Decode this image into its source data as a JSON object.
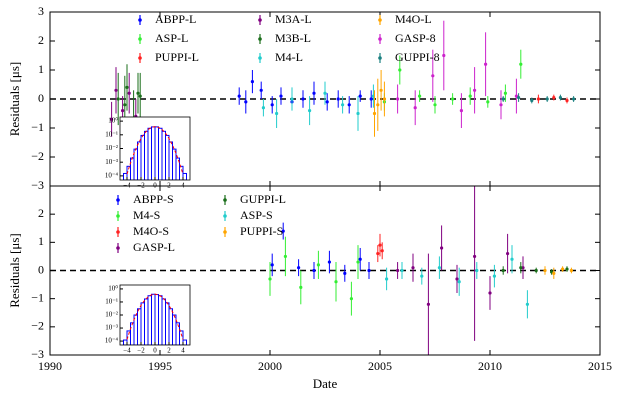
{
  "chart_data": [
    {
      "type": "errorbar",
      "ylabel": "Residuals [μs]",
      "xlim": [
        1990,
        2015
      ],
      "xticks": [
        1990,
        1995,
        2000,
        2005,
        2010,
        2015
      ],
      "ylim": [
        -3,
        3
      ],
      "yticks": [
        {
          "value": -3,
          "label": "−3"
        },
        {
          "value": -2,
          "label": "−2"
        },
        {
          "value": -1,
          "label": "−1"
        },
        0,
        1,
        2,
        3
      ],
      "zero_line": true,
      "series": [
        {
          "name": "ABPP-L",
          "color": "#0000ff",
          "x": [
            1998.6,
            1998.9,
            1999.2,
            1999.6,
            2000.1,
            2000.5,
            2001.0,
            2001.5,
            2002.0,
            2002.6,
            2003.1,
            2003.6,
            2004.1,
            2004.6
          ],
          "values": [
            0.1,
            -0.1,
            0.6,
            0.3,
            -0.2,
            0.1,
            -0.1,
            0.0,
            0.2,
            -0.1,
            0.0,
            -0.2,
            0.1,
            0.0
          ],
          "errors": [
            0.3,
            0.4,
            0.4,
            0.3,
            0.3,
            0.3,
            0.2,
            0.3,
            0.4,
            0.3,
            0.3,
            0.3,
            0.2,
            0.3
          ]
        },
        {
          "name": "ASP-L",
          "color": "#33ee33",
          "x": [
            2005.2,
            2005.9,
            2006.8,
            2007.5,
            2008.3,
            2009.1,
            2009.9,
            2010.7,
            2011.4
          ],
          "values": [
            -0.1,
            1.0,
            0.1,
            -0.2,
            0.0,
            0.1,
            -0.1,
            0.2,
            1.2
          ],
          "errors": [
            0.3,
            0.5,
            0.2,
            0.3,
            0.2,
            0.3,
            0.2,
            0.3,
            0.5
          ]
        },
        {
          "name": "PUPPI-L",
          "color": "#ff2222",
          "x": [
            2012.2,
            2012.9,
            2013.5
          ],
          "values": [
            0.0,
            0.05,
            -0.05
          ],
          "errors": [
            0.15,
            0.1,
            0.1
          ]
        },
        {
          "name": "M3A-L",
          "color": "#800080",
          "x": [
            1992.8,
            1993.0,
            1993.3,
            1993.6,
            1993.9
          ],
          "values": [
            -0.7,
            0.3,
            -0.4,
            0.2,
            -0.6
          ],
          "errors": [
            0.6,
            0.8,
            0.5,
            0.7,
            0.6
          ]
        },
        {
          "name": "M3B-L",
          "color": "#1a6e1a",
          "x": [
            1993.1,
            1993.4,
            1993.5,
            1993.8,
            1994.0,
            1994.1
          ],
          "values": [
            0.0,
            -0.2,
            0.4,
            -0.8,
            0.2,
            0.1
          ],
          "errors": [
            0.9,
            1.0,
            0.8,
            1.1,
            0.7,
            0.8
          ]
        },
        {
          "name": "M4-L",
          "color": "#22cccc",
          "x": [
            1999.7,
            2000.3,
            2001.0,
            2001.8,
            2002.5,
            2003.3,
            2004.0,
            2004.7
          ],
          "values": [
            -0.3,
            -0.5,
            0.0,
            -0.4,
            0.2,
            -0.2,
            -0.5,
            0.1
          ],
          "errors": [
            0.3,
            0.5,
            0.4,
            0.5,
            0.4,
            0.3,
            0.6,
            0.4
          ]
        },
        {
          "name": "M4O-L",
          "color": "#ffa500",
          "x": [
            2004.75,
            2004.9,
            2005.05,
            2005.2
          ],
          "values": [
            -0.5,
            -0.2,
            0.3,
            0.0
          ],
          "errors": [
            0.8,
            0.9,
            0.7,
            0.6
          ]
        },
        {
          "name": "GASP-8",
          "color": "#cc22cc",
          "x": [
            2005.8,
            2006.6,
            2007.4,
            2007.9,
            2008.7,
            2009.3,
            2009.8,
            2010.5,
            2011.2
          ],
          "values": [
            0.0,
            -0.3,
            0.8,
            1.5,
            -0.4,
            0.3,
            1.2,
            -0.2,
            0.1
          ],
          "errors": [
            0.5,
            0.6,
            0.9,
            1.2,
            0.6,
            0.8,
            1.1,
            0.5,
            0.6
          ]
        },
        {
          "name": "GUPPI-8",
          "color": "#1a8080",
          "x": [
            2010.6,
            2011.3,
            2011.9,
            2012.6,
            2013.2,
            2013.8
          ],
          "values": [
            0.0,
            0.05,
            -0.05,
            0.0,
            0.05,
            0.0
          ],
          "errors": [
            0.1,
            0.15,
            0.1,
            0.1,
            0.1,
            0.1
          ]
        }
      ],
      "inset": {
        "type": "histogram",
        "color": "#0000ff",
        "log_y": true,
        "bins": [
          -4.5,
          -4,
          -3.5,
          -3,
          -2.5,
          -2,
          -1.5,
          -1,
          -0.5,
          0,
          0.5,
          1,
          1.5,
          2,
          2.5,
          3,
          3.5,
          4,
          4.5
        ],
        "values": [
          0.00015,
          0.0005,
          0.002,
          0.009,
          0.03,
          0.09,
          0.18,
          0.3,
          0.38,
          0.38,
          0.3,
          0.18,
          0.09,
          0.03,
          0.009,
          0.002,
          0.0005,
          0.00015
        ],
        "xlim": [
          -5,
          5
        ],
        "xticks": [
          {
            "value": -4,
            "label": "−4"
          },
          {
            "value": -2,
            "label": "−2"
          },
          0,
          2,
          4
        ],
        "ylim": [
          5e-05,
          2
        ],
        "yticks": [
          {
            "value": 1,
            "label": "10⁰"
          },
          {
            "value": 0.1,
            "label": "10⁻¹"
          },
          {
            "value": 0.01,
            "label": "10⁻²"
          },
          {
            "value": 0.001,
            "label": "10⁻³"
          },
          {
            "value": 0.0001,
            "label": "10⁻⁴"
          }
        ],
        "curve": {
          "color": "#ff0000",
          "x": [
            -4,
            -3.5,
            -3,
            -2.5,
            -2,
            -1.5,
            -1,
            -0.5,
            0,
            0.5,
            1,
            1.5,
            2,
            2.5,
            3,
            3.5,
            4
          ],
          "values": [
            0.000134,
            0.00087,
            0.0044,
            0.0175,
            0.054,
            0.13,
            0.242,
            0.352,
            0.399,
            0.352,
            0.242,
            0.13,
            0.054,
            0.0175,
            0.0044,
            0.00087,
            0.000134
          ]
        }
      }
    },
    {
      "type": "errorbar",
      "ylabel": "Residuals [μs]",
      "xlabel": "Date",
      "xlim": [
        1990,
        2015
      ],
      "xticks": [
        1990,
        1995,
        2000,
        2005,
        2010,
        2015
      ],
      "ylim": [
        -3,
        3
      ],
      "yticks": [
        {
          "value": -3,
          "label": "−3"
        },
        {
          "value": -2,
          "label": "−2"
        },
        {
          "value": -1,
          "label": "−1"
        },
        0,
        1,
        2
      ],
      "zero_line": true,
      "series": [
        {
          "name": "ABPP-S",
          "color": "#0000ff",
          "x": [
            2000.1,
            2000.6,
            2001.3,
            2002.0,
            2002.7,
            2003.4,
            2004.1,
            2004.5
          ],
          "values": [
            0.2,
            1.4,
            0.1,
            0.0,
            0.3,
            -0.1,
            0.4,
            0.0
          ],
          "errors": [
            0.4,
            0.3,
            0.3,
            0.3,
            0.4,
            0.3,
            0.4,
            0.3
          ]
        },
        {
          "name": "M4-S",
          "color": "#33ee33",
          "x": [
            2000.0,
            2000.7,
            2001.4,
            2002.2,
            2003.0,
            2003.7,
            2004.0
          ],
          "values": [
            -0.3,
            0.5,
            -0.6,
            0.2,
            -0.4,
            -1.0,
            0.3
          ],
          "errors": [
            0.6,
            0.7,
            0.6,
            0.5,
            0.7,
            0.6,
            0.6
          ]
        },
        {
          "name": "M4O-S",
          "color": "#ff2222",
          "x": [
            2004.9,
            2005.0,
            2005.1
          ],
          "values": [
            0.6,
            0.9,
            0.7
          ],
          "errors": [
            0.3,
            0.4,
            0.3
          ]
        },
        {
          "name": "GASP-L",
          "color": "#800080",
          "x": [
            2005.8,
            2006.5,
            2007.2,
            2007.8,
            2008.5,
            2009.3,
            2010.0,
            2010.8,
            2011.5
          ],
          "values": [
            0.0,
            0.1,
            -1.2,
            0.8,
            -0.3,
            0.5,
            -0.8,
            0.6,
            0.1
          ],
          "errors": [
            0.3,
            0.5,
            1.8,
            0.8,
            0.5,
            3.0,
            0.6,
            0.7,
            0.4
          ]
        },
        {
          "name": "GUPPI-L",
          "color": "#1a6e1a",
          "x": [
            2010.6,
            2011.4,
            2012.1,
            2012.8,
            2013.5
          ],
          "values": [
            0.0,
            0.1,
            0.0,
            -0.05,
            0.05
          ],
          "errors": [
            0.15,
            0.2,
            0.1,
            0.1,
            0.1
          ]
        },
        {
          "name": "ASP-S",
          "color": "#22cccc",
          "x": [
            2005.3,
            2006.0,
            2006.9,
            2007.7,
            2008.6,
            2009.4,
            2010.2,
            2011.0,
            2011.7
          ],
          "values": [
            -0.3,
            0.0,
            -0.2,
            0.1,
            -0.4,
            0.0,
            -0.2,
            0.4,
            -1.2
          ],
          "errors": [
            0.4,
            0.3,
            0.3,
            0.4,
            0.5,
            0.3,
            0.4,
            0.5,
            0.5
          ]
        },
        {
          "name": "PUPPI-S",
          "color": "#ffa500",
          "x": [
            2012.5,
            2012.9,
            2013.3,
            2013.7
          ],
          "values": [
            0.0,
            -0.1,
            0.05,
            0.0
          ],
          "errors": [
            0.15,
            0.2,
            0.1,
            0.1
          ]
        }
      ],
      "inset": {
        "type": "histogram",
        "color": "#0000ff",
        "log_y": true,
        "bins": [
          -4.5,
          -4,
          -3.5,
          -3,
          -2.5,
          -2,
          -1.5,
          -1,
          -0.5,
          0,
          0.5,
          1,
          1.5,
          2,
          2.5,
          3,
          3.5,
          4,
          4.5
        ],
        "values": [
          0.00012,
          0.0006,
          0.0025,
          0.01,
          0.03,
          0.085,
          0.17,
          0.3,
          0.39,
          0.37,
          0.3,
          0.17,
          0.085,
          0.03,
          0.01,
          0.0025,
          0.0006,
          0.00012
        ],
        "xlim": [
          -5,
          5
        ],
        "xticks": [
          {
            "value": -4,
            "label": "−4"
          },
          {
            "value": -2,
            "label": "−2"
          },
          0,
          2,
          4
        ],
        "ylim": [
          5e-05,
          2
        ],
        "yticks": [
          {
            "value": 1,
            "label": "10⁰"
          },
          {
            "value": 0.1,
            "label": "10⁻¹"
          },
          {
            "value": 0.01,
            "label": "10⁻²"
          },
          {
            "value": 0.001,
            "label": "10⁻³"
          },
          {
            "value": 0.0001,
            "label": "10⁻⁴"
          }
        ],
        "curve": {
          "color": "#ff0000",
          "x": [
            -4,
            -3.5,
            -3,
            -2.5,
            -2,
            -1.5,
            -1,
            -0.5,
            0,
            0.5,
            1,
            1.5,
            2,
            2.5,
            3,
            3.5,
            4
          ],
          "values": [
            0.000134,
            0.00087,
            0.0044,
            0.0175,
            0.054,
            0.13,
            0.242,
            0.352,
            0.399,
            0.352,
            0.242,
            0.13,
            0.054,
            0.0175,
            0.0044,
            0.00087,
            0.000134
          ]
        }
      }
    }
  ]
}
